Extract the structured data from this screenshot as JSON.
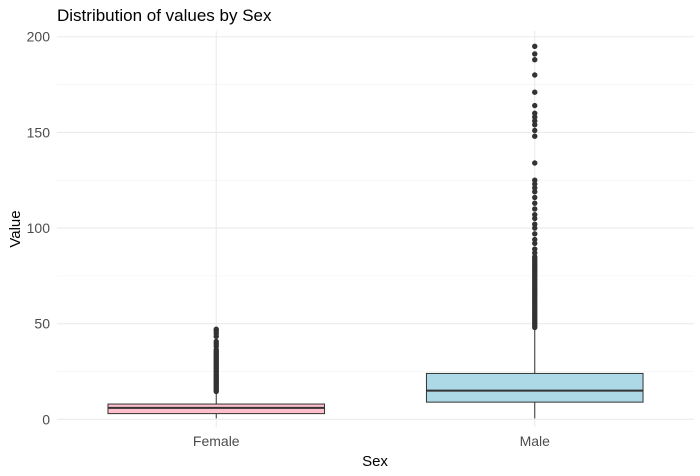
{
  "chart_data": {
    "type": "boxplot",
    "title": "Distribution of values by Sex",
    "xlabel": "Sex",
    "ylabel": "Value",
    "ylim": [
      -4,
      203
    ],
    "yticks": [
      0,
      50,
      100,
      150,
      200
    ],
    "grid": true,
    "categories": [
      "Female",
      "Male"
    ],
    "colors": {
      "Female": "#ffc0cb",
      "Male": "#add8e6",
      "outline": "#333333",
      "point": "#333333"
    },
    "boxes": [
      {
        "name": "Female",
        "whisker_low": 0.5,
        "q1": 3,
        "median": 6,
        "q3": 8,
        "whisker_high": 14,
        "outliers": [
          14.6,
          15.3,
          16.1,
          17,
          17.8,
          18.6,
          19.4,
          20.2,
          21,
          21.8,
          22.6,
          23.4,
          24.2,
          25,
          25.8,
          26.6,
          27.4,
          28.2,
          29,
          29.8,
          30.6,
          31.4,
          32.2,
          33,
          33.8,
          34.6,
          35.4,
          36.4,
          38.1,
          39.5,
          40.7,
          43.4,
          44.9,
          46.2,
          47.1
        ]
      },
      {
        "name": "Male",
        "whisker_low": 0.5,
        "q1": 9,
        "median": 15,
        "q3": 24,
        "whisker_high": 47,
        "outliers": [
          48,
          49,
          50,
          51,
          52,
          53,
          54,
          55,
          56,
          57,
          58,
          59,
          60,
          61,
          62,
          63,
          64,
          65,
          66,
          67,
          68,
          69,
          70,
          71,
          72,
          73,
          74,
          75,
          76,
          77,
          78,
          79,
          80,
          81,
          82,
          83,
          84,
          85,
          87,
          89,
          92,
          94,
          97,
          100,
          102,
          105,
          107,
          110,
          113,
          116,
          119,
          121,
          123,
          125,
          134,
          148,
          151,
          154,
          156,
          158,
          160,
          164,
          171,
          180,
          188,
          191,
          195
        ]
      }
    ]
  }
}
